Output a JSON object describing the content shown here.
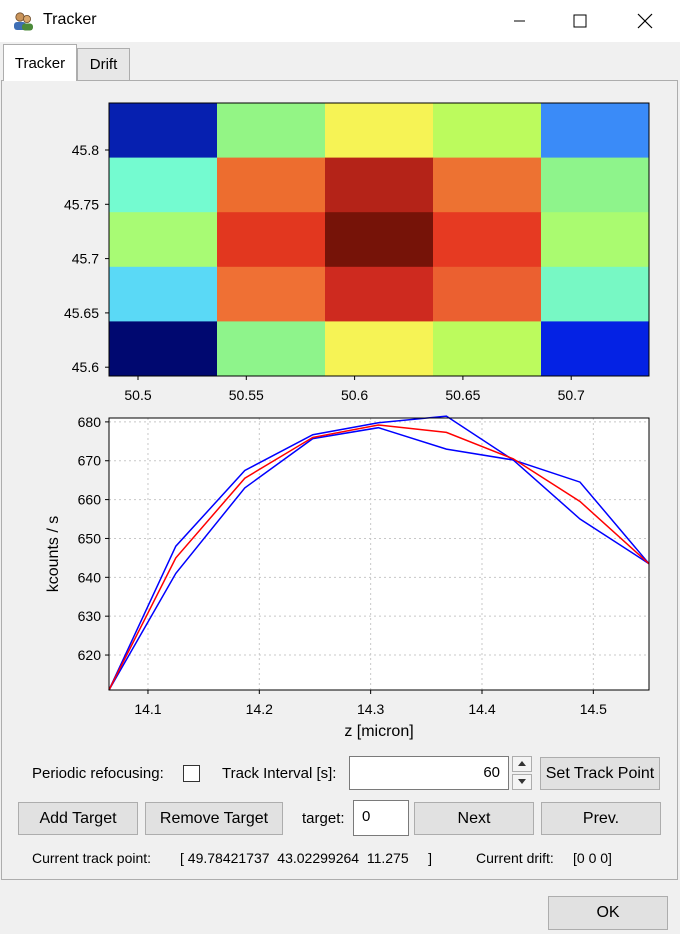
{
  "window": {
    "title": "Tracker"
  },
  "tabs": [
    {
      "label": "Tracker"
    },
    {
      "label": "Drift"
    }
  ],
  "colors": {
    "fit": "#ff0000",
    "data": "#0000ff"
  },
  "heatmap": {
    "type": "heatmap",
    "x_ticks": [
      "50.5",
      "50.55",
      "50.6",
      "50.65",
      "50.7"
    ],
    "y_ticks": [
      "45.8",
      "45.75",
      "45.7",
      "45.65",
      "45.6"
    ],
    "cells": [
      [
        "#0620b0",
        "#93f585",
        "#f6f355",
        "#bcfb5d",
        "#3a8bf8"
      ],
      [
        "#74fbd0",
        "#ed6d2f",
        "#b42318",
        "#ed7232",
        "#8ef48b"
      ],
      [
        "#a8fb74",
        "#e2371f",
        "#761308",
        "#e63a22",
        "#aafb70"
      ],
      [
        "#5ad9f6",
        "#ef7034",
        "#ce2a1f",
        "#eb6030",
        "#77f8c4"
      ],
      [
        "#000870",
        "#8ef48b",
        "#f6f355",
        "#bcfb5d",
        "#0422e4"
      ]
    ]
  },
  "chart_data": {
    "type": "line",
    "xlabel": "z [micron]",
    "ylabel": "kcounts / s",
    "xlim": [
      14.065,
      14.55
    ],
    "ylim": [
      611,
      681
    ],
    "x_ticks": [
      "14.1",
      "14.2",
      "14.3",
      "14.4",
      "14.5"
    ],
    "y_ticks": [
      "680",
      "670",
      "660",
      "650",
      "640",
      "630",
      "620"
    ],
    "grid": true,
    "series": [
      {
        "color": "#ff0000",
        "x": [
          14.065,
          14.125,
          14.187,
          14.248,
          14.307,
          14.368,
          14.428,
          14.488,
          14.55
        ],
        "y": [
          611,
          645,
          665.5,
          676,
          679.2,
          677.3,
          670.5,
          659.5,
          643.5
        ]
      },
      {
        "color": "#0000ff",
        "x": [
          14.065,
          14.125,
          14.187,
          14.248,
          14.307,
          14.368,
          14.428,
          14.488,
          14.55
        ],
        "y": [
          611,
          648,
          667.5,
          676.7,
          679.8,
          681.5,
          670.2,
          664.5,
          643.5
        ]
      },
      {
        "color": "#0000ff",
        "x": [
          14.065,
          14.125,
          14.187,
          14.248,
          14.307,
          14.368,
          14.428,
          14.488,
          14.55
        ],
        "y": [
          611,
          641,
          663,
          675.7,
          678.5,
          673,
          670.2,
          655,
          643.5
        ]
      }
    ]
  },
  "controls": {
    "periodic_label": "Periodic refocusing:",
    "track_interval_label": "Track Interval [s]:",
    "track_interval_value": "60",
    "set_track_point": "Set Track Point",
    "add_target": "Add Target",
    "remove_target": "Remove Target",
    "target_label": "target:",
    "target_value": "0",
    "next": "Next",
    "prev": "Prev.",
    "current_track_label": "Current track point:",
    "current_track_value": "[ 49.78421737  43.02299264  11.275     ]",
    "current_drift_label": "Current drift:",
    "current_drift_value": "[0 0 0]",
    "ok": "OK"
  }
}
